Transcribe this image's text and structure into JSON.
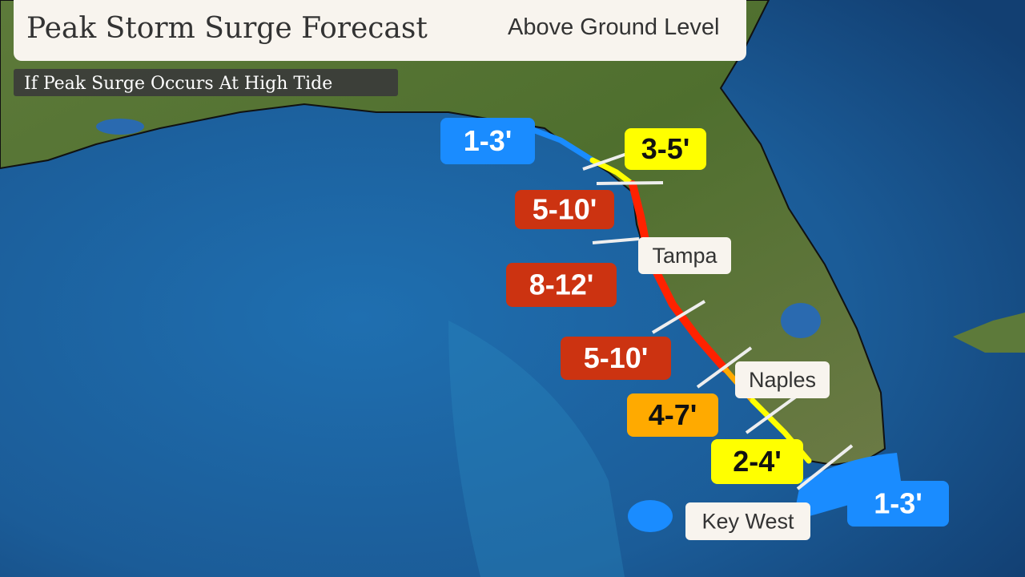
{
  "header": {
    "title": "Peak Storm Surge Forecast",
    "right_label": "Above Ground Level"
  },
  "subtitle": "If Peak Surge Occurs At High Tide",
  "surge_zones": [
    {
      "label": "1-3'",
      "color": "#1a8cff"
    },
    {
      "label": "3-5'",
      "color": "#ffff00"
    },
    {
      "label": "5-10'",
      "color": "#cc3311"
    },
    {
      "label": "8-12'",
      "color": "#cc3311"
    },
    {
      "label": "5-10'",
      "color": "#cc3311"
    },
    {
      "label": "4-7'",
      "color": "#ffaa00"
    },
    {
      "label": "2-4'",
      "color": "#ffff00"
    },
    {
      "label": "1-3'",
      "color": "#1a8cff"
    }
  ],
  "cities": [
    "Tampa",
    "Naples",
    "Key West"
  ]
}
